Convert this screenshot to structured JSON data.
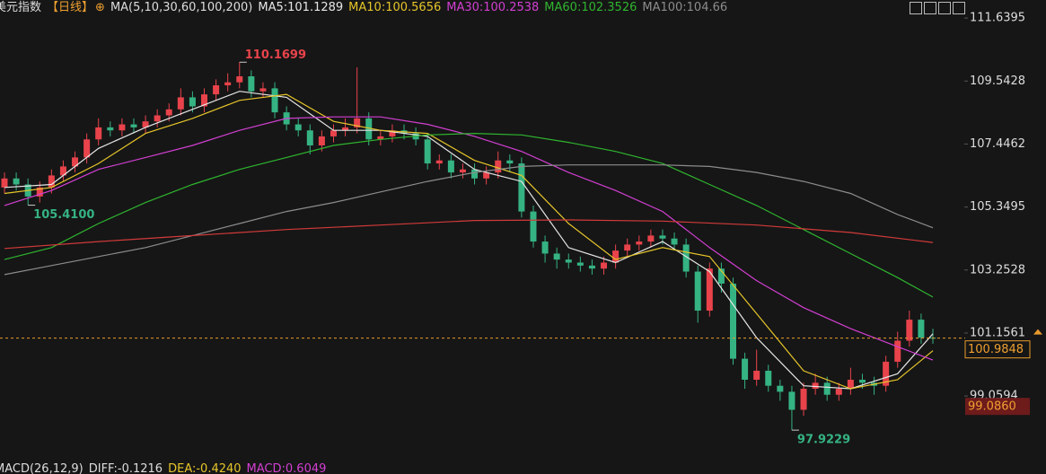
{
  "chart_data": {
    "type": "candlestick",
    "instrument": "美元指数",
    "period": "【日线】",
    "ma_label": "MA(5,10,30,60,100,200)",
    "up_color": "#e8434b",
    "down_color": "#35b383",
    "ylim": [
      97.15,
      112.24
    ],
    "yticks": [
      111.6395,
      109.5428,
      107.4462,
      105.3495,
      103.2528,
      101.1561,
      99.0594
    ],
    "last_price": 100.9848,
    "marker_price": 99.086,
    "marker_price_label": "99.0860",
    "annotations": {
      "values": [
        110.1699,
        105.41,
        97.9229
      ],
      "value_labels": [
        "110.1699",
        "105.4100",
        "97.9229"
      ]
    },
    "open": [
      106.0,
      106.3,
      106.1,
      105.7,
      106.0,
      106.4,
      106.7,
      107.0,
      107.6,
      108.0,
      107.9,
      108.1,
      108.0,
      108.2,
      108.4,
      108.6,
      109.0,
      108.7,
      109.1,
      109.4,
      109.5,
      109.7,
      109.2,
      109.3,
      108.5,
      108.1,
      107.9,
      107.4,
      107.7,
      107.9,
      108.0,
      108.3,
      107.6,
      107.7,
      107.9,
      107.8,
      107.6,
      106.8,
      106.9,
      106.5,
      106.6,
      106.3,
      106.5,
      106.9,
      106.8,
      105.2,
      104.2,
      103.8,
      103.6,
      103.5,
      103.4,
      103.3,
      103.5,
      103.9,
      104.1,
      104.2,
      104.4,
      104.3,
      104.1,
      103.2,
      101.9,
      103.3,
      102.8,
      100.3,
      99.6,
      99.9,
      99.4,
      99.2,
      98.6,
      99.3,
      99.5,
      99.1,
      99.3,
      99.6,
      99.5,
      99.4,
      100.2,
      100.9,
      101.6,
      101.0
    ],
    "high": [
      106.5,
      106.5,
      106.3,
      106.2,
      106.6,
      106.9,
      107.2,
      107.8,
      108.3,
      108.2,
      108.3,
      108.3,
      108.4,
      108.6,
      108.8,
      109.3,
      109.2,
      109.3,
      109.6,
      109.8,
      110.1699,
      109.9,
      109.5,
      109.5,
      108.7,
      108.3,
      108.1,
      107.9,
      108.1,
      108.3,
      110.0,
      108.5,
      107.9,
      108.1,
      108.1,
      108.0,
      107.8,
      107.1,
      107.1,
      106.8,
      106.8,
      106.7,
      107.2,
      107.1,
      107.0,
      105.4,
      104.4,
      104.0,
      103.8,
      103.7,
      103.6,
      103.7,
      104.1,
      104.3,
      104.4,
      104.6,
      104.6,
      104.5,
      104.3,
      103.4,
      103.5,
      103.5,
      103.0,
      100.5,
      100.6,
      100.1,
      99.6,
      99.4,
      99.5,
      99.8,
      99.7,
      99.5,
      100.0,
      99.8,
      99.7,
      100.4,
      101.2,
      101.9,
      101.8,
      101.3
    ],
    "low": [
      105.8,
      105.9,
      105.41,
      105.5,
      105.8,
      106.2,
      106.5,
      106.8,
      107.4,
      107.7,
      107.7,
      107.8,
      107.8,
      108.0,
      108.2,
      108.4,
      108.5,
      108.5,
      108.9,
      109.2,
      109.3,
      109.0,
      109.0,
      108.3,
      107.9,
      107.7,
      107.1,
      107.2,
      107.5,
      107.7,
      107.8,
      107.4,
      107.4,
      107.5,
      107.6,
      107.4,
      106.6,
      106.6,
      106.3,
      106.3,
      106.1,
      106.1,
      106.3,
      106.5,
      105.0,
      104.0,
      103.5,
      103.3,
      103.3,
      103.2,
      103.1,
      103.1,
      103.3,
      103.7,
      103.9,
      104.0,
      104.1,
      103.9,
      103.0,
      101.5,
      101.7,
      102.5,
      100.1,
      99.3,
      99.4,
      99.2,
      98.9,
      97.9229,
      98.4,
      99.1,
      98.9,
      98.9,
      99.1,
      99.3,
      99.1,
      99.2,
      100.0,
      100.7,
      100.8,
      100.8
    ],
    "close": [
      106.3,
      106.1,
      105.7,
      106.0,
      106.4,
      106.7,
      107.0,
      107.6,
      108.0,
      107.9,
      108.1,
      108.0,
      108.2,
      108.4,
      108.6,
      109.0,
      108.7,
      109.1,
      109.4,
      109.5,
      109.7,
      109.2,
      109.3,
      108.5,
      108.1,
      107.9,
      107.4,
      107.7,
      107.9,
      108.0,
      108.3,
      107.6,
      107.7,
      107.9,
      107.8,
      107.6,
      106.8,
      106.9,
      106.5,
      106.6,
      106.3,
      106.5,
      106.9,
      106.8,
      105.2,
      104.2,
      103.8,
      103.6,
      103.5,
      103.4,
      103.3,
      103.5,
      103.9,
      104.1,
      104.2,
      104.4,
      104.3,
      104.1,
      103.2,
      101.9,
      103.3,
      102.8,
      100.3,
      99.6,
      99.9,
      99.4,
      99.2,
      98.6,
      99.3,
      99.5,
      99.1,
      99.3,
      99.6,
      99.5,
      99.4,
      100.2,
      100.9,
      101.6,
      101.0,
      100.9848
    ],
    "series": [
      {
        "name": "MA5:101.1289",
        "color": "#e6e6e6",
        "x": [
          0,
          4,
          8,
          12,
          16,
          20,
          24,
          28,
          32,
          36,
          40,
          44,
          48,
          52,
          56,
          60,
          64,
          68,
          72,
          76,
          79
        ],
        "values": [
          106.0,
          106.1,
          107.3,
          108.0,
          108.6,
          109.2,
          109.0,
          107.9,
          107.9,
          107.7,
          106.6,
          106.2,
          104.0,
          103.5,
          104.2,
          103.2,
          101.0,
          99.4,
          99.3,
          99.8,
          101.1289
        ]
      },
      {
        "name": "MA10:100.5656",
        "color": "#e6c52a",
        "x": [
          0,
          4,
          8,
          12,
          16,
          20,
          24,
          28,
          32,
          36,
          40,
          44,
          48,
          52,
          56,
          60,
          64,
          68,
          72,
          76,
          79
        ],
        "values": [
          105.8,
          106.0,
          106.8,
          107.8,
          108.3,
          108.9,
          109.1,
          108.2,
          107.9,
          107.8,
          106.9,
          106.4,
          104.8,
          103.6,
          104.0,
          103.7,
          101.8,
          99.9,
          99.3,
          99.6,
          100.5656
        ]
      },
      {
        "name": "MA30:100.2538",
        "color": "#d23fd2",
        "x": [
          0,
          4,
          8,
          12,
          16,
          20,
          24,
          28,
          32,
          36,
          40,
          44,
          48,
          52,
          56,
          60,
          64,
          68,
          72,
          76,
          79
        ],
        "values": [
          105.4,
          105.9,
          106.6,
          107.0,
          107.4,
          107.9,
          108.3,
          108.35,
          108.35,
          108.1,
          107.7,
          107.2,
          106.5,
          105.9,
          105.2,
          104.0,
          102.9,
          102.0,
          101.3,
          100.7,
          100.2538
        ]
      },
      {
        "name": "MA60:102.3526",
        "color": "#2fb52f",
        "x": [
          0,
          4,
          8,
          12,
          16,
          20,
          24,
          28,
          32,
          36,
          40,
          44,
          48,
          52,
          56,
          60,
          64,
          68,
          72,
          76,
          79
        ],
        "values": [
          103.6,
          104.0,
          104.8,
          105.5,
          106.1,
          106.6,
          107.0,
          107.4,
          107.6,
          107.75,
          107.8,
          107.75,
          107.5,
          107.2,
          106.8,
          106.1,
          105.4,
          104.6,
          103.8,
          103.0,
          102.3526
        ]
      },
      {
        "name": "MA100:104.66",
        "color": "#8c8c8c",
        "x": [
          0,
          4,
          8,
          12,
          16,
          20,
          24,
          28,
          32,
          36,
          40,
          44,
          48,
          52,
          56,
          60,
          64,
          68,
          72,
          76,
          79
        ],
        "values": [
          103.1,
          103.4,
          103.7,
          104.0,
          104.4,
          104.8,
          105.2,
          105.5,
          105.85,
          106.2,
          106.5,
          106.7,
          106.75,
          106.75,
          106.75,
          106.7,
          106.5,
          106.2,
          105.8,
          105.1,
          104.66
        ]
      },
      {
        "color": "#d23a3a",
        "x": [
          0,
          8,
          16,
          24,
          32,
          40,
          48,
          56,
          64,
          72,
          79
        ],
        "values": [
          103.97,
          104.2,
          104.4,
          104.6,
          104.75,
          104.9,
          104.92,
          104.88,
          104.75,
          104.5,
          104.17
        ]
      }
    ],
    "macd": {
      "label": "MACD(26,12,9)",
      "diff": "DIFF:-0.1216",
      "dea": "DEA:-0.4240",
      "macd": "MACD:0.6049"
    }
  }
}
